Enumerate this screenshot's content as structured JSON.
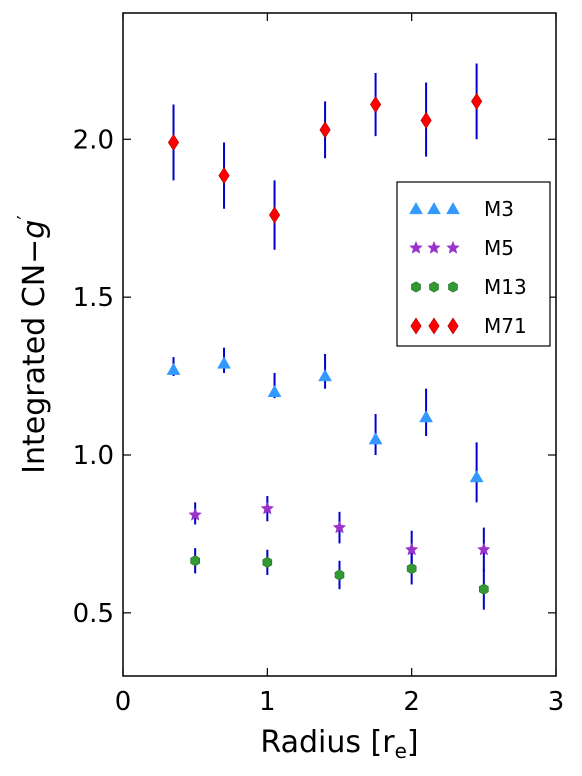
{
  "chart_data": {
    "type": "scatter",
    "title": "",
    "xlabel": "Radius [r",
    "xlabel_sub": "e",
    "xlabel_close": "]",
    "ylabel": "Integrated CN−",
    "ylabel_var": "g",
    "ylabel_prime": "′",
    "xlim": [
      0,
      3
    ],
    "ylim": [
      0.3,
      2.4
    ],
    "xticks": [
      0,
      1,
      2,
      3
    ],
    "xtick_labels": [
      "0",
      "1",
      "2",
      "3"
    ],
    "yticks": [
      0.5,
      1.0,
      1.5,
      2.0
    ],
    "ytick_labels": [
      "0.5",
      "1.0",
      "1.5",
      "2.0"
    ],
    "legend_position": "right",
    "errorbar_color": "#0000cc",
    "series": [
      {
        "name": "M3",
        "marker": "triangle",
        "color": "#3399ff",
        "points": [
          {
            "x": 0.35,
            "y": 1.27,
            "lo": 1.25,
            "hi": 1.31
          },
          {
            "x": 0.7,
            "y": 1.29,
            "lo": 1.26,
            "hi": 1.34
          },
          {
            "x": 1.05,
            "y": 1.2,
            "lo": 1.18,
            "hi": 1.26
          },
          {
            "x": 1.4,
            "y": 1.25,
            "lo": 1.21,
            "hi": 1.32
          },
          {
            "x": 1.75,
            "y": 1.05,
            "lo": 1.0,
            "hi": 1.13
          },
          {
            "x": 2.1,
            "y": 1.12,
            "lo": 1.06,
            "hi": 1.21
          },
          {
            "x": 2.45,
            "y": 0.93,
            "lo": 0.85,
            "hi": 1.04
          }
        ]
      },
      {
        "name": "M5",
        "marker": "star",
        "color": "#9933cc",
        "points": [
          {
            "x": 0.5,
            "y": 0.81,
            "lo": 0.78,
            "hi": 0.85
          },
          {
            "x": 1.0,
            "y": 0.83,
            "lo": 0.79,
            "hi": 0.87
          },
          {
            "x": 1.5,
            "y": 0.77,
            "lo": 0.72,
            "hi": 0.82
          },
          {
            "x": 2.0,
            "y": 0.7,
            "lo": 0.64,
            "hi": 0.76
          },
          {
            "x": 2.5,
            "y": 0.7,
            "lo": 0.63,
            "hi": 0.77
          }
        ]
      },
      {
        "name": "M13",
        "marker": "hexagon",
        "color": "#339933",
        "points": [
          {
            "x": 0.5,
            "y": 0.665,
            "lo": 0.625,
            "hi": 0.705
          },
          {
            "x": 1.0,
            "y": 0.66,
            "lo": 0.62,
            "hi": 0.7
          },
          {
            "x": 1.5,
            "y": 0.62,
            "lo": 0.575,
            "hi": 0.665
          },
          {
            "x": 2.0,
            "y": 0.64,
            "lo": 0.59,
            "hi": 0.69
          },
          {
            "x": 2.5,
            "y": 0.575,
            "lo": 0.51,
            "hi": 0.64
          }
        ]
      },
      {
        "name": "M71",
        "marker": "diamond",
        "color": "#ff0000",
        "points": [
          {
            "x": 0.35,
            "y": 1.99,
            "lo": 1.87,
            "hi": 2.11
          },
          {
            "x": 0.7,
            "y": 1.885,
            "lo": 1.78,
            "hi": 1.99
          },
          {
            "x": 1.05,
            "y": 1.76,
            "lo": 1.65,
            "hi": 1.87
          },
          {
            "x": 1.4,
            "y": 2.03,
            "lo": 1.94,
            "hi": 2.12
          },
          {
            "x": 1.75,
            "y": 2.11,
            "lo": 2.01,
            "hi": 2.21
          },
          {
            "x": 2.1,
            "y": 2.06,
            "lo": 1.945,
            "hi": 2.18
          },
          {
            "x": 2.45,
            "y": 2.12,
            "lo": 2.0,
            "hi": 2.24
          }
        ]
      }
    ]
  }
}
